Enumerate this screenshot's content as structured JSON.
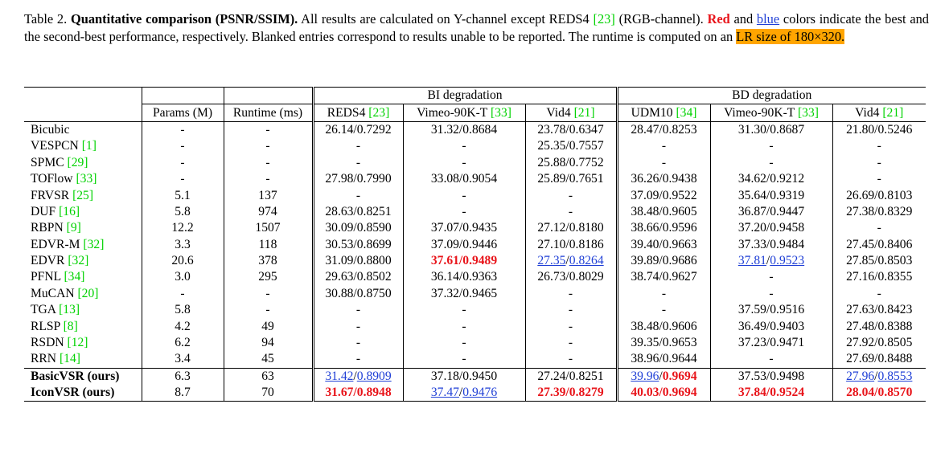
{
  "caption": {
    "label": "Table 2.",
    "title": "Quantitative comparison (PSNR/SSIM).",
    "text1": "All results are calculated on Y-channel except REDS4 ",
    "ref1": "[23]",
    "text2": " (RGB-channel). ",
    "red_word": "Red",
    "text3": " and ",
    "blue_word": "blue",
    "text4": " colors indicate the best and the second-best performance, respectively. Blanked entries correspond to results unable to be reported. The runtime is computed on an ",
    "highlight": "LR size of 180×320."
  },
  "table": {
    "group_bi": "BI degradation",
    "group_bd": "BD degradation",
    "columns": {
      "params": "Params (M)",
      "runtime": "Runtime (ms)",
      "reds4": "REDS4 ",
      "reds4_ref": "[23]",
      "vimeo_bi": "Vimeo-90K-T ",
      "vimeo_bi_ref": "[33]",
      "vid4_bi": "Vid4 ",
      "vid4_bi_ref": "[21]",
      "udm10": "UDM10 ",
      "udm10_ref": "[34]",
      "vimeo_bd": "Vimeo-90K-T ",
      "vimeo_bd_ref": "[33]",
      "vid4_bd": "Vid4 ",
      "vid4_bd_ref": "[21]"
    },
    "rows": [
      {
        "name": "Bicubic",
        "ref": "",
        "bold": false,
        "params": "-",
        "runtime": "-",
        "cells": [
          "26.14/0.7292",
          "31.32/0.8684",
          "23.78/0.6347",
          "28.47/0.8253",
          "31.30/0.8687",
          "21.80/0.5246"
        ]
      },
      {
        "name": "VESPCN ",
        "ref": "[1]",
        "bold": false,
        "params": "-",
        "runtime": "-",
        "cells": [
          "-",
          "-",
          "25.35/0.7557",
          "-",
          "-",
          "-"
        ]
      },
      {
        "name": "SPMC ",
        "ref": "[29]",
        "bold": false,
        "params": "-",
        "runtime": "-",
        "cells": [
          "-",
          "-",
          "25.88/0.7752",
          "-",
          "-",
          "-"
        ]
      },
      {
        "name": "TOFlow ",
        "ref": "[33]",
        "bold": false,
        "params": "-",
        "runtime": "-",
        "cells": [
          "27.98/0.7990",
          "33.08/0.9054",
          "25.89/0.7651",
          "36.26/0.9438",
          "34.62/0.9212",
          "-"
        ]
      },
      {
        "name": "FRVSR ",
        "ref": "[25]",
        "bold": false,
        "params": "5.1",
        "runtime": "137",
        "cells": [
          "-",
          "-",
          "-",
          "37.09/0.9522",
          "35.64/0.9319",
          "26.69/0.8103"
        ]
      },
      {
        "name": "DUF ",
        "ref": "[16]",
        "bold": false,
        "params": "5.8",
        "runtime": "974",
        "cells": [
          "28.63/0.8251",
          "-",
          "-",
          "38.48/0.9605",
          "36.87/0.9447",
          "27.38/0.8329"
        ]
      },
      {
        "name": "RBPN ",
        "ref": "[9]",
        "bold": false,
        "params": "12.2",
        "runtime": "1507",
        "cells": [
          "30.09/0.8590",
          "37.07/0.9435",
          "27.12/0.8180",
          "38.66/0.9596",
          "37.20/0.9458",
          "-"
        ]
      },
      {
        "name": "EDVR-M ",
        "ref": "[32]",
        "bold": false,
        "params": "3.3",
        "runtime": "118",
        "cells": [
          "30.53/0.8699",
          "37.09/0.9446",
          "27.10/0.8186",
          "39.40/0.9663",
          "37.33/0.9484",
          "27.45/0.8406"
        ]
      },
      {
        "name": "EDVR ",
        "ref": "[32]",
        "bold": false,
        "params": "20.6",
        "runtime": "378",
        "cells": [
          "31.09/0.8800",
          "r:37.61|r:0.9489",
          "b:27.35|b:0.8264",
          "39.89/0.9686",
          "b:37.81|b:0.9523",
          "27.85/0.8503"
        ]
      },
      {
        "name": "PFNL ",
        "ref": "[34]",
        "bold": false,
        "params": "3.0",
        "runtime": "295",
        "cells": [
          "29.63/0.8502",
          "36.14/0.9363",
          "26.73/0.8029",
          "38.74/0.9627",
          "-",
          "27.16/0.8355"
        ]
      },
      {
        "name": "MuCAN ",
        "ref": "[20]",
        "bold": false,
        "params": "-",
        "runtime": "-",
        "cells": [
          "30.88/0.8750",
          "37.32/0.9465",
          "-",
          "-",
          "-",
          "-"
        ]
      },
      {
        "name": "TGA ",
        "ref": "[13]",
        "bold": false,
        "params": "5.8",
        "runtime": "-",
        "cells": [
          "-",
          "-",
          "-",
          "-",
          "37.59/0.9516",
          "27.63/0.8423"
        ]
      },
      {
        "name": "RLSP ",
        "ref": "[8]",
        "bold": false,
        "params": "4.2",
        "runtime": "49",
        "cells": [
          "-",
          "-",
          "-",
          "38.48/0.9606",
          "36.49/0.9403",
          "27.48/0.8388"
        ]
      },
      {
        "name": "RSDN ",
        "ref": "[12]",
        "bold": false,
        "params": "6.2",
        "runtime": "94",
        "cells": [
          "-",
          "-",
          "-",
          "39.35/0.9653",
          "37.23/0.9471",
          "27.92/0.8505"
        ]
      },
      {
        "name": "RRN ",
        "ref": "[14]",
        "bold": false,
        "params": "3.4",
        "runtime": "45",
        "cells": [
          "-",
          "-",
          "-",
          "38.96/0.9644",
          "-",
          "27.69/0.8488"
        ]
      },
      {
        "name": "BasicVSR (ours)",
        "ref": "",
        "bold": true,
        "params": "6.3",
        "runtime": "63",
        "cells": [
          "b:31.42|b:0.8909",
          "37.18/0.9450",
          "27.24/0.8251",
          "b:39.96|r:0.9694",
          "37.53/0.9498",
          "b:27.96|b:0.8553"
        ]
      },
      {
        "name": "IconVSR (ours)",
        "ref": "",
        "bold": true,
        "params": "8.7",
        "runtime": "70",
        "cells": [
          "r:31.67|r:0.8948",
          "b:37.47|b:0.9476",
          "r:27.39|r:0.8279",
          "r:40.03|r:0.9694",
          "r:37.84|r:0.9524",
          "r:28.04|r:0.8570"
        ]
      }
    ]
  },
  "colors": {
    "best": "#e8141a",
    "second": "#1f3fd6",
    "citation": "#00d200",
    "highlight": "#ffa500"
  }
}
